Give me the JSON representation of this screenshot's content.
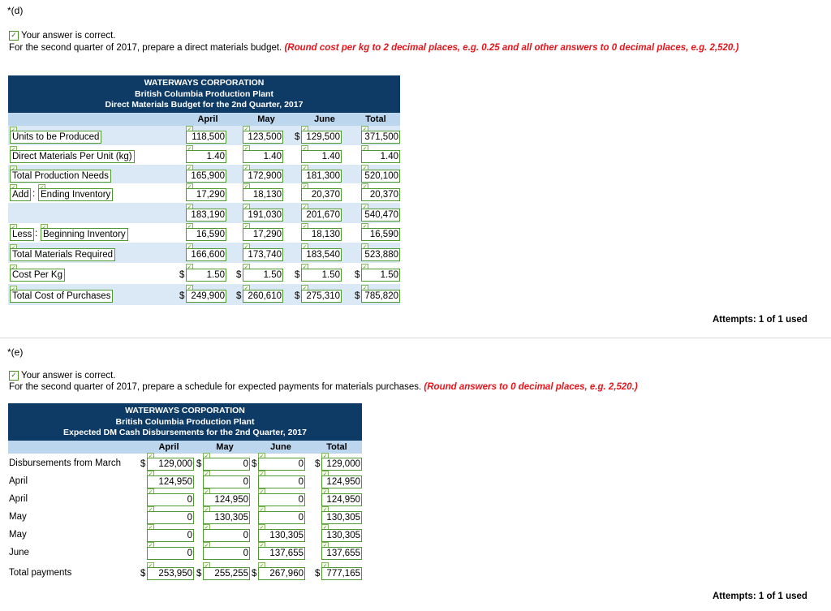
{
  "part_d": {
    "label": "*(d)",
    "correct_text": "Your answer is correct.",
    "instruction": "For the second quarter of 2017, prepare a direct materials budget.",
    "instruction_note": "(Round cost per kg to 2 decimal places, e.g. 0.25 and all other answers to 0 decimal places, e.g. 2,520.)",
    "title1": "WATERWAYS CORPORATION",
    "title2": "British Columbia Production Plant",
    "title3": "Direct Materials Budget for the 2nd Quarter, 2017",
    "columns": [
      "April",
      "May",
      "June",
      "Total"
    ],
    "rows": [
      {
        "label": "Units to be Produced",
        "values": [
          "118,500",
          "123,500",
          "129,500",
          "371,500"
        ],
        "dollar": [
          false,
          false,
          true,
          false
        ]
      },
      {
        "label": "Direct Materials Per Unit (kg)",
        "values": [
          "1.40",
          "1.40",
          "1.40",
          "1.40"
        ],
        "dollar": [
          false,
          false,
          false,
          false
        ]
      },
      {
        "label": "Total Production Needs",
        "values": [
          "165,900",
          "172,900",
          "181,300",
          "520,100"
        ],
        "dollar": [
          false,
          false,
          false,
          false
        ]
      },
      {
        "label_prefix": "Add",
        "label": "Ending Inventory",
        "values": [
          "17,290",
          "18,130",
          "20,370",
          "20,370"
        ],
        "dollar": [
          false,
          false,
          false,
          false
        ]
      },
      {
        "label": "",
        "values": [
          "183,190",
          "191,030",
          "201,670",
          "540,470"
        ],
        "dollar": [
          false,
          false,
          false,
          false
        ]
      },
      {
        "label_prefix": "Less",
        "label": "Beginning Inventory",
        "values": [
          "16,590",
          "17,290",
          "18,130",
          "16,590"
        ],
        "dollar": [
          false,
          false,
          false,
          false
        ]
      },
      {
        "label": "Total Materials Required",
        "values": [
          "166,600",
          "173,740",
          "183,540",
          "523,880"
        ],
        "dollar": [
          false,
          false,
          false,
          false
        ]
      },
      {
        "label": "Cost Per Kg",
        "values": [
          "1.50",
          "1.50",
          "1.50",
          "1.50"
        ],
        "dollar": [
          true,
          true,
          true,
          true
        ]
      },
      {
        "label": "Total Cost of Purchases",
        "values": [
          "249,900",
          "260,610",
          "275,310",
          "785,820"
        ],
        "dollar": [
          true,
          true,
          true,
          true
        ]
      }
    ],
    "attempts": "Attempts: 1 of 1 used"
  },
  "part_e": {
    "label": "*(e)",
    "correct_text": "Your answer is correct.",
    "instruction": "For the second quarter of 2017, prepare a schedule for expected payments for materials purchases.",
    "instruction_note": "(Round answers to 0 decimal places, e.g. 2,520.)",
    "title1": "WATERWAYS CORPORATION",
    "title2": "British Columbia Production Plant",
    "title3": "Expected DM Cash Disbursements for the 2nd Quarter, 2017",
    "columns": [
      "April",
      "May",
      "June",
      "Total"
    ],
    "rows": [
      {
        "label": "Disbursements from March",
        "values": [
          "129,000",
          "0",
          "0",
          "129,000"
        ],
        "dollar": [
          true,
          true,
          true,
          true
        ]
      },
      {
        "label": "April",
        "values": [
          "124,950",
          "0",
          "0",
          "124,950"
        ],
        "dollar": [
          false,
          false,
          false,
          false
        ]
      },
      {
        "label": "April",
        "values": [
          "0",
          "124,950",
          "0",
          "124,950"
        ],
        "dollar": [
          false,
          false,
          false,
          false
        ]
      },
      {
        "label": "May",
        "values": [
          "0",
          "130,305",
          "0",
          "130,305"
        ],
        "dollar": [
          false,
          false,
          false,
          false
        ]
      },
      {
        "label": "May",
        "values": [
          "0",
          "0",
          "130,305",
          "130,305"
        ],
        "dollar": [
          false,
          false,
          false,
          false
        ]
      },
      {
        "label": "June",
        "values": [
          "0",
          "0",
          "137,655",
          "137,655"
        ],
        "dollar": [
          false,
          false,
          false,
          false
        ]
      },
      {
        "label": "Total payments",
        "values": [
          "253,950",
          "255,255",
          "267,960",
          "777,165"
        ],
        "dollar": [
          true,
          true,
          true,
          true
        ]
      }
    ],
    "attempts": "Attempts: 1 of 1 used"
  },
  "colors": {
    "header_bg": "#0e3a66",
    "column_header_bg": "#bcd6ee",
    "alt_row_bg": "#dbe8f6",
    "input_border": "#4f9a30",
    "note_red": "#e8141b"
  }
}
